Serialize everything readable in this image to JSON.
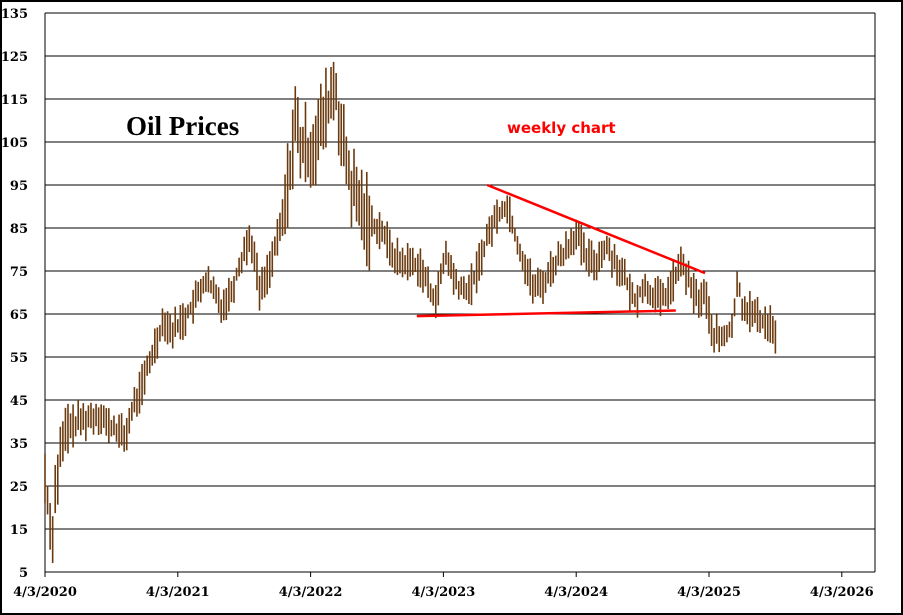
{
  "chart_data": {
    "type": "bar",
    "subtype": "weekly OHLC price bars",
    "title": "Oil Prices",
    "annotation": "weekly chart",
    "xlabel": "",
    "ylabel": "",
    "ylim": [
      5,
      135
    ],
    "y_ticks": [
      "135",
      "125",
      "115",
      "105",
      "95",
      "85",
      "75",
      "65",
      "55",
      "45",
      "35",
      "25",
      "15",
      "5"
    ],
    "x_ticks": [
      "4/3/2020",
      "4/3/2021",
      "4/3/2022",
      "4/3/2023",
      "4/3/2024",
      "4/3/2025",
      "4/3/2026"
    ],
    "x_range_years": [
      2020.25,
      2026.5
    ],
    "grid": "horizontal",
    "legend": "none",
    "colors": {
      "bars": "#6b3a0e",
      "trendlines": "#ff0000",
      "grid": "#000000"
    },
    "price_path": [
      [
        2020.25,
        27
      ],
      [
        2020.27,
        22
      ],
      [
        2020.3,
        12
      ],
      [
        2020.33,
        25
      ],
      [
        2020.37,
        33
      ],
      [
        2020.42,
        38
      ],
      [
        2020.5,
        40
      ],
      [
        2020.6,
        41
      ],
      [
        2020.67,
        42
      ],
      [
        2020.72,
        39
      ],
      [
        2020.8,
        38
      ],
      [
        2020.85,
        36
      ],
      [
        2020.9,
        42
      ],
      [
        2020.95,
        46
      ],
      [
        2021.0,
        50
      ],
      [
        2021.05,
        55
      ],
      [
        2021.1,
        60
      ],
      [
        2021.15,
        64
      ],
      [
        2021.2,
        61
      ],
      [
        2021.3,
        64
      ],
      [
        2021.4,
        69
      ],
      [
        2021.45,
        73
      ],
      [
        2021.5,
        71
      ],
      [
        2021.58,
        67
      ],
      [
        2021.65,
        70
      ],
      [
        2021.75,
        80
      ],
      [
        2021.8,
        83
      ],
      [
        2021.87,
        70
      ],
      [
        2021.93,
        75
      ],
      [
        2022.0,
        82
      ],
      [
        2022.07,
        92
      ],
      [
        2022.13,
        110
      ],
      [
        2022.18,
        103
      ],
      [
        2022.25,
        103
      ],
      [
        2022.35,
        110
      ],
      [
        2022.43,
        118
      ],
      [
        2022.5,
        103
      ],
      [
        2022.55,
        95
      ],
      [
        2022.62,
        90
      ],
      [
        2022.7,
        86
      ],
      [
        2022.78,
        85
      ],
      [
        2022.85,
        80
      ],
      [
        2022.92,
        77
      ],
      [
        2023.0,
        77
      ],
      [
        2023.08,
        76
      ],
      [
        2023.15,
        70
      ],
      [
        2023.2,
        69
      ],
      [
        2023.27,
        79
      ],
      [
        2023.33,
        73
      ],
      [
        2023.4,
        70
      ],
      [
        2023.47,
        72
      ],
      [
        2023.55,
        80
      ],
      [
        2023.62,
        86
      ],
      [
        2023.7,
        90
      ],
      [
        2023.75,
        89
      ],
      [
        2023.8,
        82
      ],
      [
        2023.87,
        76
      ],
      [
        2023.93,
        71
      ],
      [
        2024.0,
        72
      ],
      [
        2024.07,
        76
      ],
      [
        2024.15,
        79
      ],
      [
        2024.25,
        84
      ],
      [
        2024.32,
        78
      ],
      [
        2024.4,
        77
      ],
      [
        2024.47,
        81
      ],
      [
        2024.55,
        77
      ],
      [
        2024.62,
        73
      ],
      [
        2024.68,
        68
      ],
      [
        2024.75,
        71
      ],
      [
        2024.82,
        70
      ],
      [
        2024.9,
        68
      ],
      [
        2024.97,
        72
      ],
      [
        2025.05,
        77
      ],
      [
        2025.1,
        72
      ],
      [
        2025.17,
        68
      ],
      [
        2025.22,
        70
      ],
      [
        2025.27,
        61
      ],
      [
        2025.33,
        59
      ],
      [
        2025.38,
        60
      ],
      [
        2025.43,
        63
      ],
      [
        2025.47,
        73
      ],
      [
        2025.5,
        67
      ],
      [
        2025.55,
        66
      ],
      [
        2025.62,
        64
      ],
      [
        2025.67,
        63
      ],
      [
        2025.72,
        63
      ],
      [
        2025.76,
        59
      ]
    ],
    "trendlines": [
      {
        "from": [
          2023.58,
          95
        ],
        "to": [
          2025.22,
          74.5
        ]
      },
      {
        "from": [
          2023.05,
          64.5
        ],
        "to": [
          2025.0,
          65.8
        ]
      }
    ]
  }
}
